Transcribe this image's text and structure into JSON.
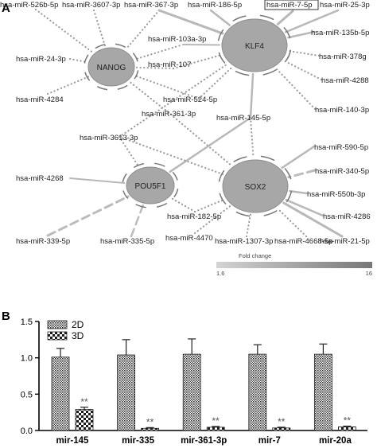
{
  "figure": {
    "panel_a_label": "A",
    "panel_b_label": "B"
  },
  "network": {
    "hubs": [
      {
        "id": "klf4",
        "label": "KLF4"
      },
      {
        "id": "nanog",
        "label": "NANOG"
      },
      {
        "id": "pou5f1",
        "label": "POU5F1"
      },
      {
        "id": "sox2",
        "label": "SOX2"
      }
    ],
    "mirnas": [
      {
        "id": "m526b",
        "label": "hsa-miR-526b-5p",
        "targets": [
          "nanog"
        ]
      },
      {
        "id": "m3607",
        "label": "hsa-miR-3607-3p",
        "targets": [
          "nanog"
        ]
      },
      {
        "id": "m367",
        "label": "hsa-miR-367-3p",
        "targets": [
          "nanog",
          "klf4"
        ]
      },
      {
        "id": "m186",
        "label": "hsa-miR-186-5p",
        "targets": [
          "klf4"
        ]
      },
      {
        "id": "m7",
        "label": "hsa-miR-7-5p",
        "targets": [
          "klf4"
        ],
        "boxed": true
      },
      {
        "id": "m25",
        "label": "hsa-miR-25-3p",
        "targets": [
          "klf4"
        ]
      },
      {
        "id": "m135b",
        "label": "hsa-miR-135b-5p",
        "targets": [
          "klf4"
        ]
      },
      {
        "id": "m378g",
        "label": "hsa-miR-378g",
        "targets": [
          "klf4"
        ]
      },
      {
        "id": "m4288",
        "label": "hsa-miR-4288",
        "targets": [
          "klf4"
        ]
      },
      {
        "id": "m24",
        "label": "hsa-miR-24-3p",
        "targets": [
          "nanog"
        ]
      },
      {
        "id": "m4284",
        "label": "hsa-miR-4284",
        "targets": [
          "nanog"
        ]
      },
      {
        "id": "m103a",
        "label": "hsa-miR-103a-3p",
        "targets": [
          "nanog",
          "klf4"
        ]
      },
      {
        "id": "m107",
        "label": "hsa-miR-107",
        "targets": [
          "nanog",
          "klf4"
        ]
      },
      {
        "id": "m524",
        "label": "hsa-miR-524-5p",
        "targets": [
          "nanog",
          "klf4"
        ]
      },
      {
        "id": "m361",
        "label": "hsa-miR-361-3p",
        "targets": [
          "nanog",
          "sox2"
        ]
      },
      {
        "id": "m145",
        "label": "hsa-miR-145-5p",
        "targets": [
          "klf4",
          "pou5f1",
          "sox2"
        ]
      },
      {
        "id": "m140",
        "label": "hsa-miR-140-3p",
        "targets": [
          "klf4"
        ]
      },
      {
        "id": "m3613",
        "label": "hsa-miR-3613-3p",
        "targets": [
          "klf4",
          "pou5f1",
          "sox2"
        ]
      },
      {
        "id": "m590",
        "label": "hsa-miR-590-5p",
        "targets": [
          "sox2"
        ]
      },
      {
        "id": "m4268",
        "label": "hsa-miR-4268",
        "targets": [
          "pou5f1"
        ]
      },
      {
        "id": "m340",
        "label": "hsa-miR-340-5p",
        "targets": [
          "sox2"
        ]
      },
      {
        "id": "m550b",
        "label": "hsa-miR-550b-3p",
        "targets": [
          "sox2"
        ]
      },
      {
        "id": "m182",
        "label": "hsa-miR-182-5p",
        "targets": [
          "pou5f1",
          "sox2"
        ]
      },
      {
        "id": "m4286",
        "label": "hsa-miR-4286",
        "targets": [
          "sox2"
        ]
      },
      {
        "id": "m4470",
        "label": "hsa-miR-4470",
        "targets": [
          "sox2"
        ]
      },
      {
        "id": "m339",
        "label": "hsa-miR-339-5p",
        "targets": [
          "pou5f1"
        ]
      },
      {
        "id": "m335",
        "label": "hsa-miR-335-5p",
        "targets": [
          "pou5f1"
        ]
      },
      {
        "id": "m1307",
        "label": "hsa-miR-1307-3p",
        "targets": [
          "sox2"
        ]
      },
      {
        "id": "m4668",
        "label": "hsa-miR-4668-5p",
        "targets": [
          "sox2"
        ]
      },
      {
        "id": "m21",
        "label": "hsa-miR-21-5p",
        "targets": [
          "sox2"
        ]
      }
    ],
    "fold_change_legend": {
      "title": "Fold change",
      "min": 1.6,
      "max": 16,
      "min_label": "1.6",
      "max_label": "16",
      "colors": [
        "#d4d4d4",
        "#777777"
      ]
    }
  },
  "chart_data": {
    "type": "bar",
    "categories": [
      "mir-145",
      "mir-335",
      "mir-361-3p",
      "mir-7",
      "mir-20a"
    ],
    "series": [
      {
        "name": "2D",
        "values": [
          1.01,
          1.04,
          1.05,
          1.05,
          1.05
        ],
        "errors": [
          0.12,
          0.21,
          0.21,
          0.13,
          0.14
        ]
      },
      {
        "name": "3D",
        "values": [
          0.29,
          0.03,
          0.045,
          0.035,
          0.05
        ],
        "errors": [
          0.03,
          0.01,
          0.01,
          0.01,
          0.01
        ]
      }
    ],
    "ylim": [
      0,
      1.5
    ],
    "yticks": [
      0,
      0.5,
      1.0,
      1.5
    ],
    "ytick_labels": [
      "0.0",
      "0.5",
      "1.0",
      "1.5"
    ],
    "annotations": [
      "**",
      "**",
      "**",
      "**",
      "**"
    ],
    "legend_position": "top-left",
    "grid": false
  }
}
